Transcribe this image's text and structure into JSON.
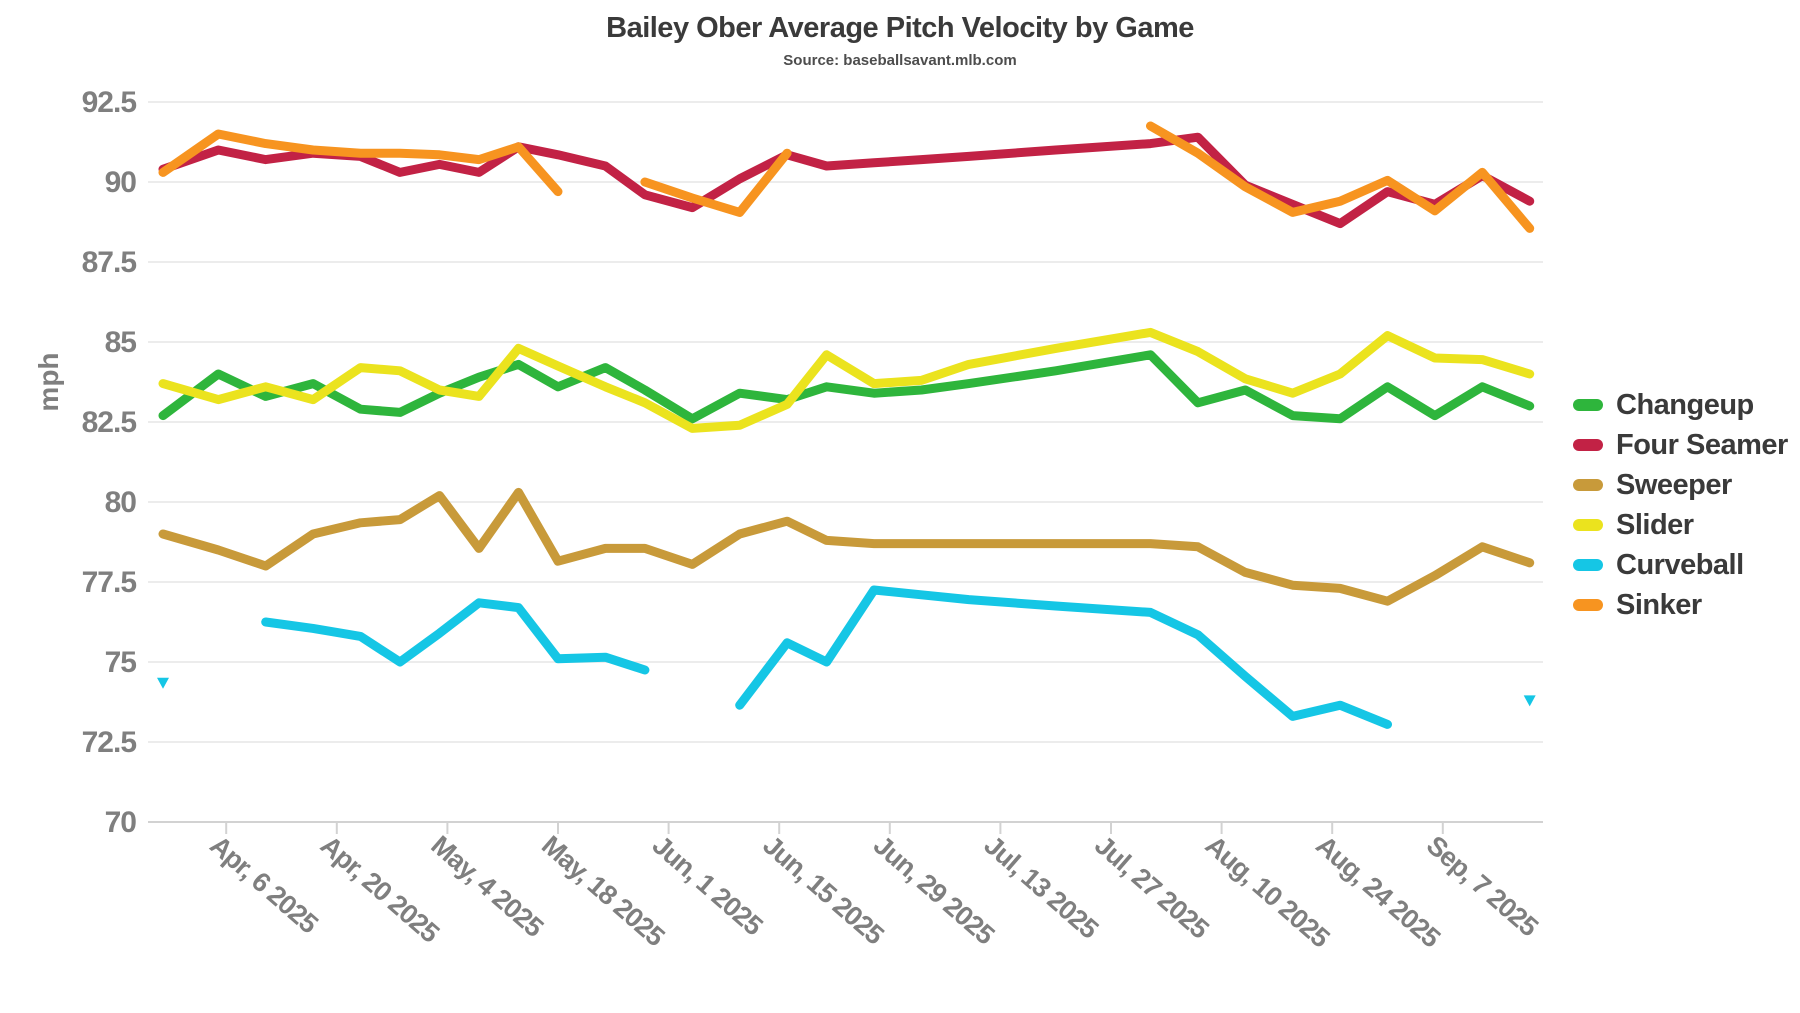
{
  "page": {
    "title": "Bailey Ober Average Pitch Velocity by Game",
    "subtitle": "Source: baseballsavant.mlb.com"
  },
  "y_axis": {
    "label": "mph",
    "tick_labels": [
      "92.5",
      "90",
      "87.5",
      "85",
      "82.5",
      "80",
      "77.5",
      "75",
      "72.5",
      "70"
    ]
  },
  "x_axis": {
    "tick_labels": [
      "Apr, 6 2025",
      "Apr, 20 2025",
      "May, 4 2025",
      "May, 18 2025",
      "Jun, 1 2025",
      "Jun, 15 2025",
      "Jun, 29 2025",
      "Jul, 13 2025",
      "Jul, 27 2025",
      "Aug, 10 2025",
      "Aug, 24 2025",
      "Sep, 7 2025"
    ]
  },
  "colors": {
    "grid": "#ececec",
    "axis": "#d2d2d2",
    "tick_text": "#7f7f7f",
    "title_text": "#3a3a3a"
  },
  "chart_data": {
    "type": "line",
    "title": "Bailey Ober Average Pitch Velocity by Game",
    "subtitle": "Source: baseballsavant.mlb.com",
    "xlabel": "",
    "ylabel": "mph",
    "ylim": [
      70,
      92.5
    ],
    "ytick_step": 2.5,
    "yticks": [
      70,
      72.5,
      75,
      77.5,
      80,
      82.5,
      85,
      87.5,
      90,
      92.5
    ],
    "grid": "horizontal-only",
    "legend_position": "right",
    "x_unit": "game date (2025 season)",
    "x_ticks": [
      {
        "label": "Apr, 6 2025",
        "day": 8
      },
      {
        "label": "Apr, 20 2025",
        "day": 22
      },
      {
        "label": "May, 4 2025",
        "day": 36
      },
      {
        "label": "May, 18 2025",
        "day": 50
      },
      {
        "label": "Jun, 1 2025",
        "day": 64
      },
      {
        "label": "Jun, 15 2025",
        "day": 78
      },
      {
        "label": "Jun, 29 2025",
        "day": 92
      },
      {
        "label": "Jul, 13 2025",
        "day": 106
      },
      {
        "label": "Jul, 27 2025",
        "day": 120
      },
      {
        "label": "Aug, 10 2025",
        "day": 134
      },
      {
        "label": "Aug, 24 2025",
        "day": 148
      },
      {
        "label": "Sep, 7 2025",
        "day": 162
      }
    ],
    "games": [
      {
        "approx_date": "Mar 29",
        "day": 0
      },
      {
        "approx_date": "Apr 5",
        "day": 7
      },
      {
        "approx_date": "Apr 11",
        "day": 13
      },
      {
        "approx_date": "Apr 17",
        "day": 19
      },
      {
        "approx_date": "Apr 23",
        "day": 25
      },
      {
        "approx_date": "Apr 28",
        "day": 30
      },
      {
        "approx_date": "May 3",
        "day": 35
      },
      {
        "approx_date": "May 8",
        "day": 40
      },
      {
        "approx_date": "May 13",
        "day": 45
      },
      {
        "approx_date": "May 18",
        "day": 50
      },
      {
        "approx_date": "May 24",
        "day": 56
      },
      {
        "approx_date": "May 29",
        "day": 61
      },
      {
        "approx_date": "Jun 4",
        "day": 67
      },
      {
        "approx_date": "Jun 10",
        "day": 73
      },
      {
        "approx_date": "Jun 16",
        "day": 79
      },
      {
        "approx_date": "Jun 21",
        "day": 84
      },
      {
        "approx_date": "Jun 27",
        "day": 90
      },
      {
        "approx_date": "Jul 3",
        "day": 96
      },
      {
        "approx_date": "Jul 9",
        "day": 102
      },
      {
        "approx_date": "Jul 20",
        "day": 113
      },
      {
        "approx_date": "Aug 1",
        "day": 125
      },
      {
        "approx_date": "Aug 7",
        "day": 131
      },
      {
        "approx_date": "Aug 13",
        "day": 137
      },
      {
        "approx_date": "Aug 19",
        "day": 143
      },
      {
        "approx_date": "Aug 25",
        "day": 149
      },
      {
        "approx_date": "Aug 31",
        "day": 155
      },
      {
        "approx_date": "Sep 6",
        "day": 161
      },
      {
        "approx_date": "Sep 12",
        "day": 167
      },
      {
        "approx_date": "Sep 18",
        "day": 173
      }
    ],
    "series": [
      {
        "name": "Changeup",
        "color": "#2eb53c",
        "values": [
          82.7,
          84.0,
          83.3,
          83.7,
          82.9,
          82.8,
          83.4,
          83.9,
          84.3,
          83.6,
          84.2,
          83.5,
          82.6,
          83.4,
          83.2,
          83.6,
          83.4,
          83.5,
          83.7,
          84.1,
          84.6,
          83.1,
          83.5,
          82.7,
          82.6,
          83.6,
          82.7,
          83.6,
          83.0
        ]
      },
      {
        "name": "Four Seamer",
        "color": "#c22245",
        "values": [
          90.4,
          91.0,
          90.7,
          90.9,
          90.8,
          90.3,
          90.55,
          90.3,
          91.1,
          90.85,
          90.5,
          89.6,
          89.2,
          90.1,
          90.85,
          90.5,
          90.6,
          90.7,
          90.8,
          91.0,
          91.2,
          91.4,
          89.9,
          89.3,
          88.7,
          89.7,
          89.3,
          90.2,
          89.4
        ]
      },
      {
        "name": "Sweeper",
        "color": "#c89a3a",
        "values": [
          79.0,
          78.5,
          78.0,
          79.0,
          79.35,
          79.45,
          80.2,
          78.55,
          80.3,
          78.15,
          78.55,
          78.55,
          78.05,
          79.0,
          79.4,
          78.8,
          78.7,
          78.7,
          78.7,
          78.7,
          78.7,
          78.6,
          77.8,
          77.4,
          77.3,
          76.9,
          77.7,
          78.6,
          78.1
        ]
      },
      {
        "name": "Slider",
        "color": "#ebe31e",
        "values": [
          83.7,
          83.2,
          83.6,
          83.2,
          84.2,
          84.1,
          83.5,
          83.3,
          84.8,
          84.25,
          83.6,
          83.1,
          82.3,
          82.4,
          83.05,
          84.6,
          83.7,
          83.8,
          84.3,
          84.8,
          85.3,
          84.7,
          83.85,
          83.4,
          84.0,
          85.2,
          84.5,
          84.45,
          84.0
        ]
      },
      {
        "name": "Curveball",
        "color": "#15c6e5",
        "values": [
          74.35,
          null,
          76.25,
          76.05,
          75.8,
          75.0,
          75.9,
          76.85,
          76.7,
          75.1,
          75.15,
          74.75,
          null,
          73.65,
          75.6,
          75.0,
          77.25,
          77.1,
          76.95,
          76.75,
          76.55,
          75.85,
          74.55,
          73.3,
          73.65,
          73.05,
          null,
          null,
          73.8
        ]
      },
      {
        "name": "Sinker",
        "color": "#f79420",
        "values": [
          90.3,
          91.5,
          91.2,
          91.0,
          90.9,
          90.9,
          90.85,
          90.7,
          91.1,
          89.7,
          null,
          90.0,
          89.5,
          89.05,
          90.9,
          null,
          null,
          null,
          null,
          null,
          91.75,
          90.9,
          89.85,
          89.05,
          89.4,
          90.05,
          89.1,
          90.3,
          88.55
        ]
      }
    ],
    "notes": "Isolated points (a value with empty neighbors) are drawn as small triangle markers; null = pitch not thrown that game."
  }
}
